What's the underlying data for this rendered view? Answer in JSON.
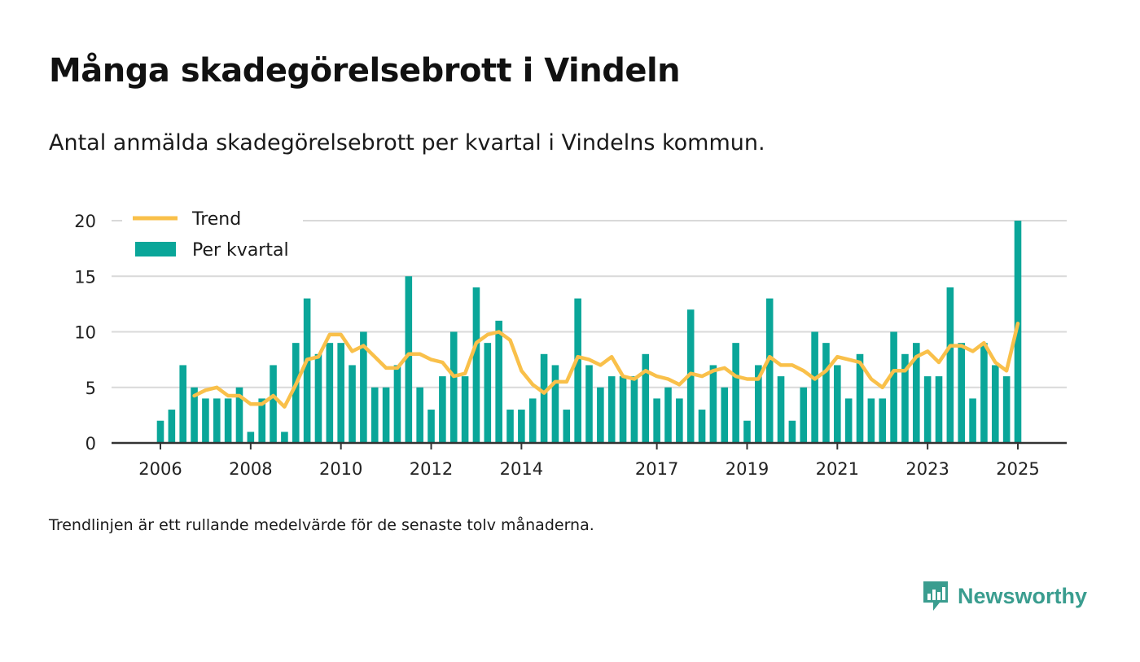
{
  "header": {
    "title": "Många skadegörelsebrott i Vindeln",
    "subtitle": "Antal anmälda skadegörelsebrott per kvartal i Vindelns kommun."
  },
  "footer": {
    "note": "Trendlinjen är ett rullande medelvärde för de senaste tolv månaderna.",
    "brand": "Newsworthy"
  },
  "colors": {
    "bar": "#0aa699",
    "trend": "#f9c04a",
    "grid": "#d9d9d9",
    "axis": "#333333",
    "brand": "#3a9d8f"
  },
  "icons": {
    "brand_logo": "bar-chart-speech-bubble-icon"
  },
  "chart_data": {
    "type": "bar",
    "title": "Många skadegörelsebrott i Vindeln",
    "xlabel": "",
    "ylabel": "",
    "ylim": [
      0,
      20
    ],
    "yticks": [
      0,
      5,
      10,
      15,
      20
    ],
    "xlim": [
      2005.75,
      2026.25
    ],
    "grid": true,
    "legend_position": "top-left",
    "xtick_labels": [
      {
        "label": "2006",
        "x": 2006.0
      },
      {
        "label": "2008",
        "x": 2008.0
      },
      {
        "label": "2010",
        "x": 2010.0
      },
      {
        "label": "2012",
        "x": 2012.0
      },
      {
        "label": "2014",
        "x": 2014.0
      },
      {
        "label": "2017",
        "x": 2017.0
      },
      {
        "label": "2019",
        "x": 2019.0
      },
      {
        "label": "2021",
        "x": 2021.0
      },
      {
        "label": "2023",
        "x": 2023.0
      },
      {
        "label": "2025",
        "x": 2025.0
      }
    ],
    "series": [
      {
        "name": "Per kvartal",
        "type": "bar",
        "x": [
          2006.0,
          2006.25,
          2006.5,
          2006.75,
          2007.0,
          2007.25,
          2007.5,
          2007.75,
          2008.0,
          2008.25,
          2008.5,
          2008.75,
          2009.0,
          2009.25,
          2009.5,
          2009.75,
          2010.0,
          2010.25,
          2010.5,
          2010.75,
          2011.0,
          2011.25,
          2011.5,
          2011.75,
          2012.0,
          2012.25,
          2012.5,
          2012.75,
          2013.0,
          2013.25,
          2013.5,
          2013.75,
          2014.0,
          2014.25,
          2014.5,
          2014.75,
          2015.0,
          2015.25,
          2015.5,
          2015.75,
          2016.0,
          2016.25,
          2016.5,
          2016.75,
          2017.0,
          2017.25,
          2017.5,
          2017.75,
          2018.0,
          2018.25,
          2018.5,
          2018.75,
          2019.0,
          2019.25,
          2019.5,
          2019.75,
          2020.0,
          2020.25,
          2020.5,
          2020.75,
          2021.0,
          2021.25,
          2021.5,
          2021.75,
          2022.0,
          2022.25,
          2022.5,
          2022.75,
          2023.0,
          2023.25,
          2023.5,
          2023.75,
          2024.0,
          2024.25,
          2024.5,
          2024.75,
          2025.0
        ],
        "values": [
          2,
          3,
          7,
          5,
          4,
          4,
          4,
          5,
          1,
          4,
          7,
          1,
          9,
          13,
          8,
          9,
          9,
          7,
          10,
          5,
          5,
          7,
          15,
          5,
          3,
          6,
          10,
          6,
          14,
          9,
          11,
          3,
          3,
          4,
          8,
          7,
          3,
          13,
          7,
          5,
          6,
          6,
          6,
          8,
          4,
          5,
          4,
          12,
          3,
          7,
          5,
          9,
          2,
          7,
          13,
          6,
          2,
          5,
          10,
          9,
          7,
          4,
          8,
          4,
          4,
          10,
          8,
          9,
          6,
          6,
          14,
          9,
          4,
          9,
          7,
          6,
          20
        ]
      },
      {
        "name": "Trend",
        "type": "line",
        "x": [
          2006.75,
          2007.0,
          2007.25,
          2007.5,
          2007.75,
          2008.0,
          2008.25,
          2008.5,
          2008.75,
          2009.0,
          2009.25,
          2009.5,
          2009.75,
          2010.0,
          2010.25,
          2010.5,
          2010.75,
          2011.0,
          2011.25,
          2011.5,
          2011.75,
          2012.0,
          2012.25,
          2012.5,
          2012.75,
          2013.0,
          2013.25,
          2013.5,
          2013.75,
          2014.0,
          2014.25,
          2014.5,
          2014.75,
          2015.0,
          2015.25,
          2015.5,
          2015.75,
          2016.0,
          2016.25,
          2016.5,
          2016.75,
          2017.0,
          2017.25,
          2017.5,
          2017.75,
          2018.0,
          2018.25,
          2018.5,
          2018.75,
          2019.0,
          2019.25,
          2019.5,
          2019.75,
          2020.0,
          2020.25,
          2020.5,
          2020.75,
          2021.0,
          2021.25,
          2021.5,
          2021.75,
          2022.0,
          2022.25,
          2022.5,
          2022.75,
          2023.0,
          2023.25,
          2023.5,
          2023.75,
          2024.0,
          2024.25,
          2024.5,
          2024.75,
          2025.0
        ],
        "values": [
          4.25,
          4.75,
          5.0,
          4.25,
          4.25,
          3.5,
          3.5,
          4.25,
          3.25,
          5.25,
          7.5,
          7.75,
          9.75,
          9.75,
          8.25,
          8.75,
          7.75,
          6.75,
          6.75,
          8.0,
          8.0,
          7.5,
          7.25,
          6.0,
          6.25,
          9.0,
          9.75,
          10.0,
          9.25,
          6.5,
          5.25,
          4.5,
          5.5,
          5.5,
          7.75,
          7.5,
          7.0,
          7.75,
          6.0,
          5.75,
          6.5,
          6.0,
          5.75,
          5.25,
          6.25,
          6.0,
          6.5,
          6.75,
          6.0,
          5.75,
          5.75,
          7.75,
          7.0,
          7.0,
          6.5,
          5.75,
          6.5,
          7.75,
          7.5,
          7.25,
          5.75,
          5.0,
          6.5,
          6.5,
          7.75,
          8.25,
          7.25,
          8.75,
          8.75,
          8.25,
          9.0,
          7.25,
          6.5,
          10.75
        ]
      }
    ]
  }
}
